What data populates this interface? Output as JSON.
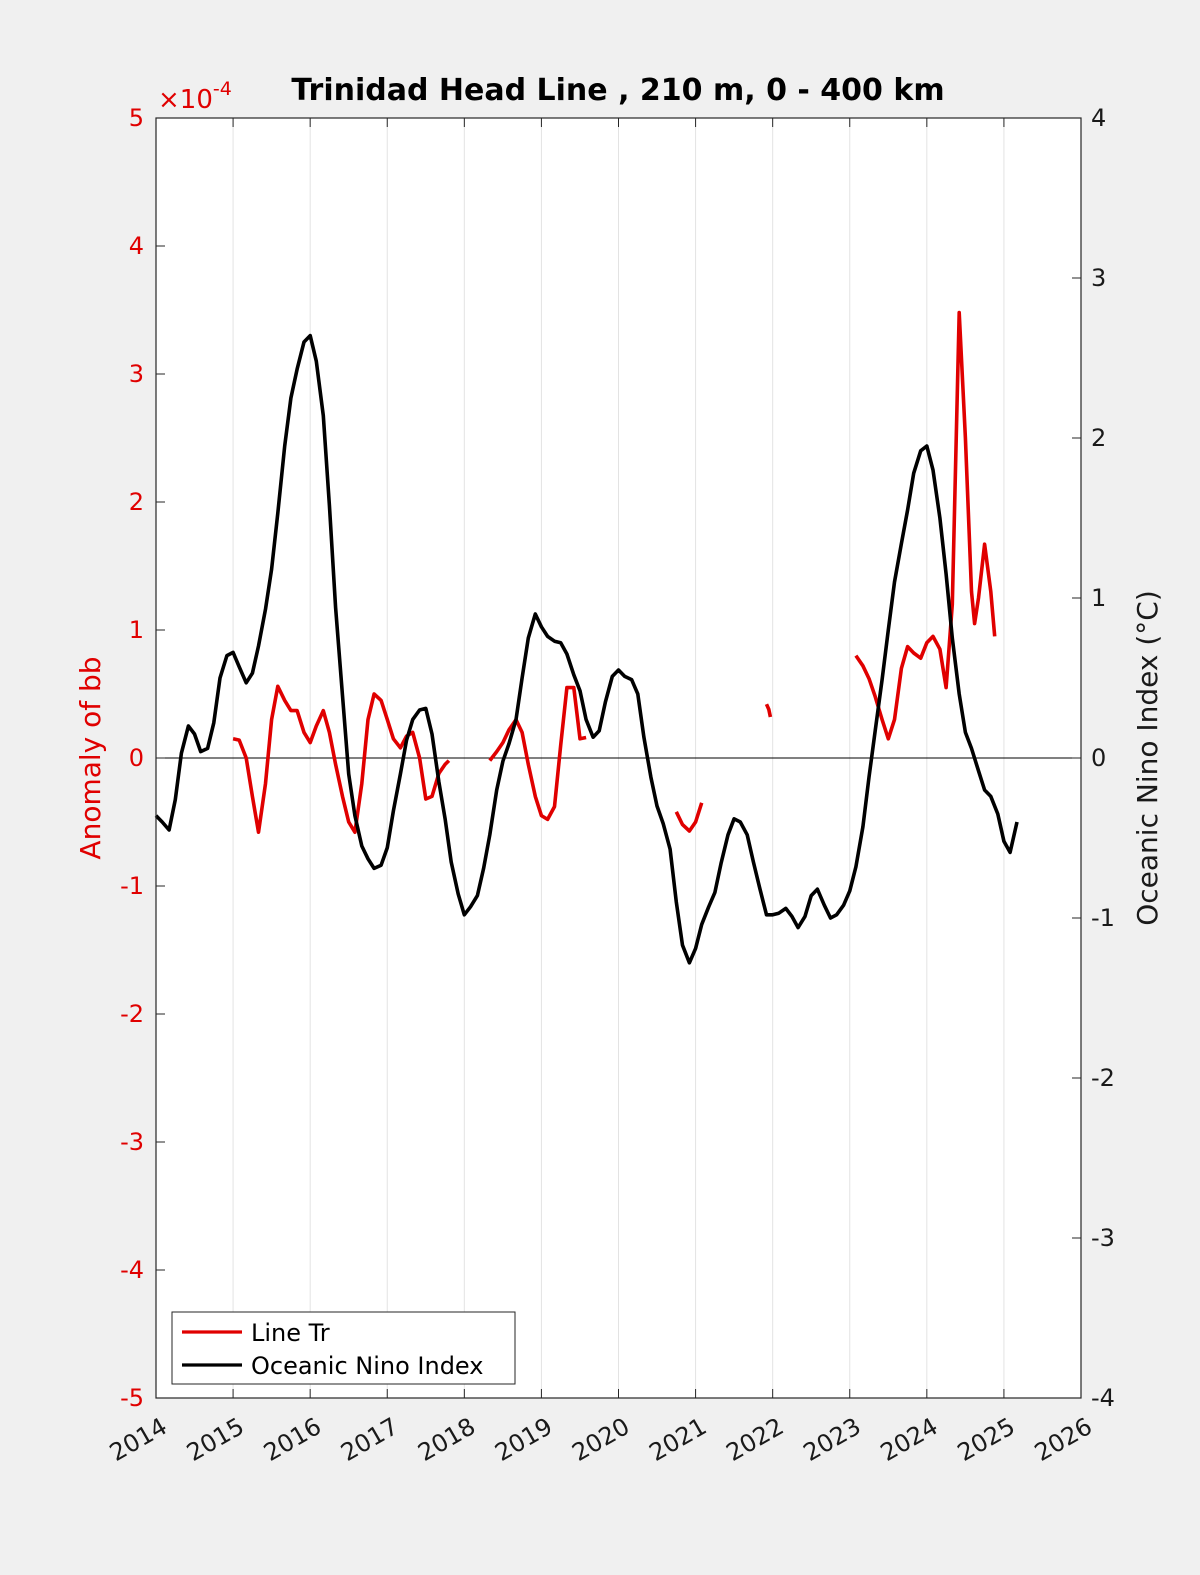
{
  "chart_data": {
    "type": "line",
    "title": "Trinidad Head Line , 210 m, 0 - 400 km",
    "ylabel_left": "Anomaly of bb",
    "ylabel_right": "Oceanic Nino Index (°C)",
    "y_left_exponent": {
      "base": "×10",
      "power": "-4"
    },
    "xlim": [
      2014,
      2026
    ],
    "ylim_left": [
      -5,
      5
    ],
    "ylim_right": [
      -4,
      4
    ],
    "x_ticks": [
      "2014",
      "2015",
      "2016",
      "2017",
      "2018",
      "2019",
      "2020",
      "2021",
      "2022",
      "2023",
      "2024",
      "2025",
      "2026"
    ],
    "y_left_ticks": [
      "5",
      "4",
      "3",
      "2",
      "1",
      "0",
      "-1",
      "-2",
      "-3",
      "-4",
      "-5"
    ],
    "y_right_ticks": [
      "4",
      "3",
      "2",
      "1",
      "0",
      "-1",
      "-2",
      "-3",
      "-4"
    ],
    "grid": "vertical",
    "zero_line": true,
    "legend": {
      "placement": "bottom-left",
      "entries": [
        {
          "label": "Line Tr",
          "color": "#e00000"
        },
        {
          "label": "Oceanic Nino Index",
          "color": "#000000"
        }
      ]
    },
    "series": [
      {
        "name": "Line Tr",
        "axis": "left",
        "color": "#e00000",
        "units_note": "×10^-4",
        "segments": [
          [
            [
              2015.0,
              0.15
            ],
            [
              2015.08,
              0.14
            ],
            [
              2015.17,
              0.0
            ],
            [
              2015.25,
              -0.3
            ],
            [
              2015.33,
              -0.58
            ],
            [
              2015.42,
              -0.2
            ],
            [
              2015.5,
              0.3
            ],
            [
              2015.58,
              0.56
            ],
            [
              2015.67,
              0.45
            ],
            [
              2015.75,
              0.37
            ],
            [
              2015.83,
              0.37
            ],
            [
              2015.92,
              0.2
            ],
            [
              2016.0,
              0.12
            ],
            [
              2016.08,
              0.25
            ],
            [
              2016.17,
              0.37
            ],
            [
              2016.25,
              0.2
            ],
            [
              2016.33,
              -0.05
            ],
            [
              2016.42,
              -0.3
            ],
            [
              2016.5,
              -0.5
            ],
            [
              2016.58,
              -0.58
            ],
            [
              2016.67,
              -0.2
            ],
            [
              2016.75,
              0.3
            ],
            [
              2016.83,
              0.5
            ],
            [
              2016.92,
              0.45
            ],
            [
              2017.0,
              0.3
            ],
            [
              2017.08,
              0.15
            ],
            [
              2017.17,
              0.08
            ],
            [
              2017.25,
              0.17
            ],
            [
              2017.33,
              0.2
            ],
            [
              2017.42,
              0.0
            ],
            [
              2017.5,
              -0.32
            ],
            [
              2017.58,
              -0.3
            ],
            [
              2017.67,
              -0.12
            ],
            [
              2017.75,
              -0.05
            ],
            [
              2017.8,
              -0.02
            ]
          ],
          [
            [
              2018.33,
              -0.02
            ],
            [
              2018.42,
              0.05
            ],
            [
              2018.5,
              0.12
            ],
            [
              2018.58,
              0.22
            ],
            [
              2018.67,
              0.3
            ],
            [
              2018.75,
              0.2
            ],
            [
              2018.83,
              -0.05
            ],
            [
              2018.92,
              -0.3
            ],
            [
              2019.0,
              -0.45
            ],
            [
              2019.08,
              -0.48
            ],
            [
              2019.17,
              -0.38
            ],
            [
              2019.25,
              0.1
            ],
            [
              2019.33,
              0.55
            ],
            [
              2019.42,
              0.55
            ],
            [
              2019.5,
              0.15
            ],
            [
              2019.58,
              0.16
            ]
          ],
          [
            [
              2020.75,
              -0.42
            ],
            [
              2020.83,
              -0.52
            ],
            [
              2020.92,
              -0.57
            ],
            [
              2021.0,
              -0.5
            ],
            [
              2021.08,
              -0.35
            ]
          ],
          [
            [
              2021.92,
              0.42
            ],
            [
              2021.95,
              0.38
            ],
            [
              2021.97,
              0.32
            ]
          ],
          [
            [
              2023.08,
              0.8
            ],
            [
              2023.17,
              0.72
            ],
            [
              2023.25,
              0.62
            ],
            [
              2023.33,
              0.48
            ],
            [
              2023.42,
              0.3
            ],
            [
              2023.5,
              0.15
            ],
            [
              2023.58,
              0.3
            ],
            [
              2023.67,
              0.7
            ],
            [
              2023.75,
              0.87
            ],
            [
              2023.83,
              0.82
            ],
            [
              2023.92,
              0.78
            ],
            [
              2024.0,
              0.9
            ],
            [
              2024.08,
              0.95
            ],
            [
              2024.17,
              0.85
            ],
            [
              2024.25,
              0.55
            ],
            [
              2024.33,
              1.2
            ],
            [
              2024.42,
              3.48
            ],
            [
              2024.5,
              2.5
            ],
            [
              2024.58,
              1.3
            ],
            [
              2024.62,
              1.05
            ],
            [
              2024.67,
              1.25
            ],
            [
              2024.75,
              1.67
            ],
            [
              2024.83,
              1.3
            ],
            [
              2024.88,
              0.95
            ]
          ]
        ]
      },
      {
        "name": "Oceanic Nino Index",
        "axis": "right",
        "color": "#000000",
        "units_note": "°C",
        "points": [
          [
            2014.0,
            -0.36
          ],
          [
            2014.08,
            -0.4
          ],
          [
            2014.17,
            -0.45
          ],
          [
            2014.25,
            -0.26
          ],
          [
            2014.33,
            0.03
          ],
          [
            2014.42,
            0.2
          ],
          [
            2014.5,
            0.15
          ],
          [
            2014.58,
            0.04
          ],
          [
            2014.67,
            0.06
          ],
          [
            2014.75,
            0.22
          ],
          [
            2014.83,
            0.5
          ],
          [
            2014.92,
            0.64
          ],
          [
            2015.0,
            0.66
          ],
          [
            2015.08,
            0.57
          ],
          [
            2015.17,
            0.47
          ],
          [
            2015.25,
            0.53
          ],
          [
            2015.33,
            0.7
          ],
          [
            2015.42,
            0.93
          ],
          [
            2015.5,
            1.18
          ],
          [
            2015.58,
            1.53
          ],
          [
            2015.67,
            1.95
          ],
          [
            2015.75,
            2.25
          ],
          [
            2015.83,
            2.43
          ],
          [
            2015.92,
            2.6
          ],
          [
            2016.0,
            2.64
          ],
          [
            2016.08,
            2.48
          ],
          [
            2016.17,
            2.14
          ],
          [
            2016.25,
            1.58
          ],
          [
            2016.33,
            0.94
          ],
          [
            2016.42,
            0.39
          ],
          [
            2016.5,
            -0.1
          ],
          [
            2016.58,
            -0.36
          ],
          [
            2016.67,
            -0.55
          ],
          [
            2016.75,
            -0.63
          ],
          [
            2016.83,
            -0.69
          ],
          [
            2016.92,
            -0.67
          ],
          [
            2017.0,
            -0.56
          ],
          [
            2017.08,
            -0.33
          ],
          [
            2017.17,
            -0.1
          ],
          [
            2017.25,
            0.11
          ],
          [
            2017.33,
            0.24
          ],
          [
            2017.42,
            0.3
          ],
          [
            2017.5,
            0.31
          ],
          [
            2017.58,
            0.15
          ],
          [
            2017.67,
            -0.15
          ],
          [
            2017.75,
            -0.38
          ],
          [
            2017.83,
            -0.65
          ],
          [
            2017.92,
            -0.85
          ],
          [
            2018.0,
            -0.98
          ],
          [
            2018.08,
            -0.93
          ],
          [
            2018.17,
            -0.86
          ],
          [
            2018.25,
            -0.69
          ],
          [
            2018.33,
            -0.48
          ],
          [
            2018.42,
            -0.2
          ],
          [
            2018.5,
            -0.02
          ],
          [
            2018.58,
            0.09
          ],
          [
            2018.67,
            0.24
          ],
          [
            2018.75,
            0.5
          ],
          [
            2018.83,
            0.75
          ],
          [
            2018.92,
            0.9
          ],
          [
            2019.0,
            0.82
          ],
          [
            2019.08,
            0.76
          ],
          [
            2019.17,
            0.73
          ],
          [
            2019.25,
            0.72
          ],
          [
            2019.33,
            0.65
          ],
          [
            2019.42,
            0.52
          ],
          [
            2019.5,
            0.42
          ],
          [
            2019.58,
            0.24
          ],
          [
            2019.67,
            0.13
          ],
          [
            2019.75,
            0.17
          ],
          [
            2019.83,
            0.35
          ],
          [
            2019.92,
            0.51
          ],
          [
            2020.0,
            0.55
          ],
          [
            2020.08,
            0.51
          ],
          [
            2020.17,
            0.49
          ],
          [
            2020.25,
            0.4
          ],
          [
            2020.33,
            0.13
          ],
          [
            2020.42,
            -0.12
          ],
          [
            2020.5,
            -0.3
          ],
          [
            2020.58,
            -0.41
          ],
          [
            2020.67,
            -0.57
          ],
          [
            2020.75,
            -0.9
          ],
          [
            2020.83,
            -1.17
          ],
          [
            2020.92,
            -1.28
          ],
          [
            2021.0,
            -1.19
          ],
          [
            2021.08,
            -1.04
          ],
          [
            2021.17,
            -0.93
          ],
          [
            2021.25,
            -0.84
          ],
          [
            2021.33,
            -0.66
          ],
          [
            2021.42,
            -0.48
          ],
          [
            2021.5,
            -0.38
          ],
          [
            2021.58,
            -0.4
          ],
          [
            2021.67,
            -0.48
          ],
          [
            2021.75,
            -0.65
          ],
          [
            2021.83,
            -0.81
          ],
          [
            2021.92,
            -0.98
          ],
          [
            2022.0,
            -0.98
          ],
          [
            2022.08,
            -0.97
          ],
          [
            2022.17,
            -0.94
          ],
          [
            2022.25,
            -0.99
          ],
          [
            2022.33,
            -1.06
          ],
          [
            2022.42,
            -0.99
          ],
          [
            2022.5,
            -0.86
          ],
          [
            2022.58,
            -0.82
          ],
          [
            2022.67,
            -0.92
          ],
          [
            2022.75,
            -1.0
          ],
          [
            2022.83,
            -0.98
          ],
          [
            2022.92,
            -0.92
          ],
          [
            2023.0,
            -0.83
          ],
          [
            2023.08,
            -0.68
          ],
          [
            2023.17,
            -0.43
          ],
          [
            2023.25,
            -0.12
          ],
          [
            2023.33,
            0.17
          ],
          [
            2023.42,
            0.49
          ],
          [
            2023.5,
            0.8
          ],
          [
            2023.58,
            1.1
          ],
          [
            2023.67,
            1.34
          ],
          [
            2023.75,
            1.55
          ],
          [
            2023.83,
            1.78
          ],
          [
            2023.92,
            1.92
          ],
          [
            2024.0,
            1.95
          ],
          [
            2024.08,
            1.8
          ],
          [
            2024.17,
            1.5
          ],
          [
            2024.25,
            1.15
          ],
          [
            2024.33,
            0.75
          ],
          [
            2024.42,
            0.4
          ],
          [
            2024.5,
            0.16
          ],
          [
            2024.58,
            0.06
          ],
          [
            2024.67,
            -0.08
          ],
          [
            2024.75,
            -0.2
          ],
          [
            2024.83,
            -0.24
          ],
          [
            2024.92,
            -0.35
          ],
          [
            2025.0,
            -0.52
          ],
          [
            2025.08,
            -0.59
          ],
          [
            2025.17,
            -0.4
          ]
        ]
      }
    ]
  }
}
